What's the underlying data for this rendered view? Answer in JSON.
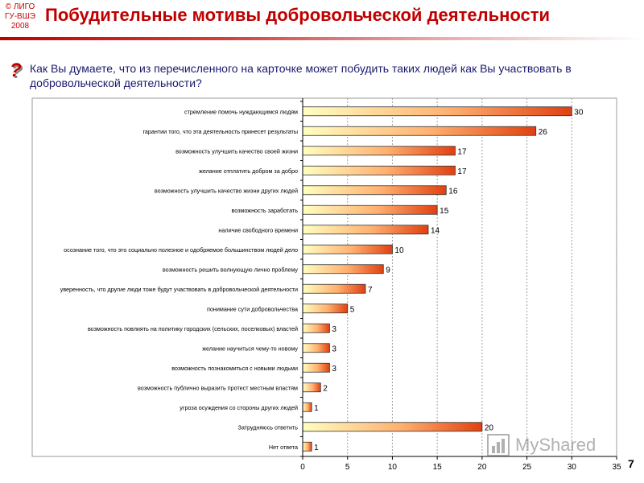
{
  "header": {
    "copyright_lines": [
      "© ЛИГО",
      "ГУ-ВШЭ",
      "2008"
    ],
    "title": "Побудительные мотивы добровольческой деятельности"
  },
  "question": {
    "mark": "?",
    "text": "Как Вы думаете, что из перечисленного на карточке может побудить таких людей как Вы участвовать в добровольческой деятельности?"
  },
  "page_number": "7",
  "watermark": {
    "text": "MyShared",
    "icon": "bar-chart-icon"
  },
  "colors": {
    "bar_start": "#ffffc0",
    "bar_mid": "#ffb070",
    "bar_end": "#e04010",
    "title": "#c00000",
    "question": "#1a1a6e"
  },
  "chart_data": {
    "type": "bar",
    "orientation": "horizontal",
    "categories": [
      "стремление помочь нуждающимся людям",
      "гарантии того, что эта деятельность принесет результаты",
      "возможность улучшить качество своей жизни",
      "желание отплатить добром за добро",
      "возможность улучшить качество жизни других людей",
      "возможность заработать",
      "наличие свободного времени",
      "осознание того, что это социально полезное и одобряемое большинством людей дело",
      "возможность решить волнующую лично проблему",
      "уверенность, что другие люди тоже будут участвовать в добровольческой деятельности",
      "понимание сути добровольчества",
      "возможность повлиять на политику городских (сельских, поселковых) властей",
      "желание научиться чему-то новому",
      "возможность познакомиться с новыми людьми",
      "возможность публично выразить протест местным властям",
      "угроза осуждения со стороны других людей",
      "Затрудняюсь ответить",
      "Нет ответа"
    ],
    "values": [
      30,
      26,
      17,
      17,
      16,
      15,
      14,
      10,
      9,
      7,
      5,
      3,
      3,
      3,
      2,
      1,
      20,
      1
    ],
    "xlim": [
      0,
      35
    ],
    "xticks": [
      0,
      5,
      10,
      15,
      20,
      25,
      30,
      35
    ],
    "grid": "vertical-dashed",
    "data_labels": true,
    "legend": "none"
  }
}
